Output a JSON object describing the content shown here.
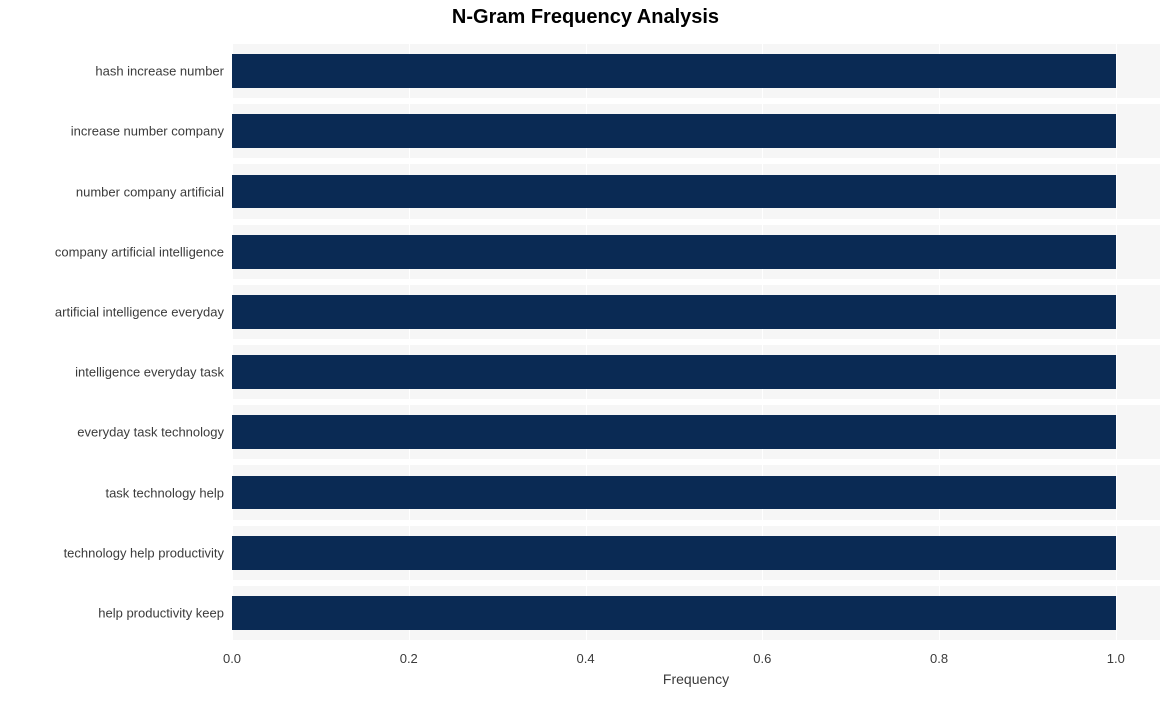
{
  "chart": {
    "type": "bar-horizontal",
    "title": "N-Gram Frequency Analysis",
    "title_fontsize": 20,
    "title_fontweight": 700,
    "title_color": "#000000",
    "x_axis_title": "Frequency",
    "x_axis_fontsize": 14,
    "axis_label_fontsize": 13,
    "background_color": "#ffffff",
    "band_color": "#f6f6f6",
    "gridline_color": "#ffffff",
    "bar_color": "#0a2a54",
    "xlim": [
      0.0,
      1.05
    ],
    "xticks": [
      {
        "value": 0.0,
        "label": "0.0"
      },
      {
        "value": 0.2,
        "label": "0.2"
      },
      {
        "value": 0.4,
        "label": "0.4"
      },
      {
        "value": 0.6,
        "label": "0.6"
      },
      {
        "value": 0.8,
        "label": "0.8"
      },
      {
        "value": 1.0,
        "label": "1.0"
      }
    ],
    "band_height_ratio": 0.9,
    "bar_height_ratio": 0.56,
    "categories": [
      {
        "label": "hash increase number",
        "value": 1.0
      },
      {
        "label": "increase number company",
        "value": 1.0
      },
      {
        "label": "number company artificial",
        "value": 1.0
      },
      {
        "label": "company artificial intelligence",
        "value": 1.0
      },
      {
        "label": "artificial intelligence everyday",
        "value": 1.0
      },
      {
        "label": "intelligence everyday task",
        "value": 1.0
      },
      {
        "label": "everyday task technology",
        "value": 1.0
      },
      {
        "label": "task technology help",
        "value": 1.0
      },
      {
        "label": "technology help productivity",
        "value": 1.0
      },
      {
        "label": "help productivity keep",
        "value": 1.0
      }
    ]
  }
}
